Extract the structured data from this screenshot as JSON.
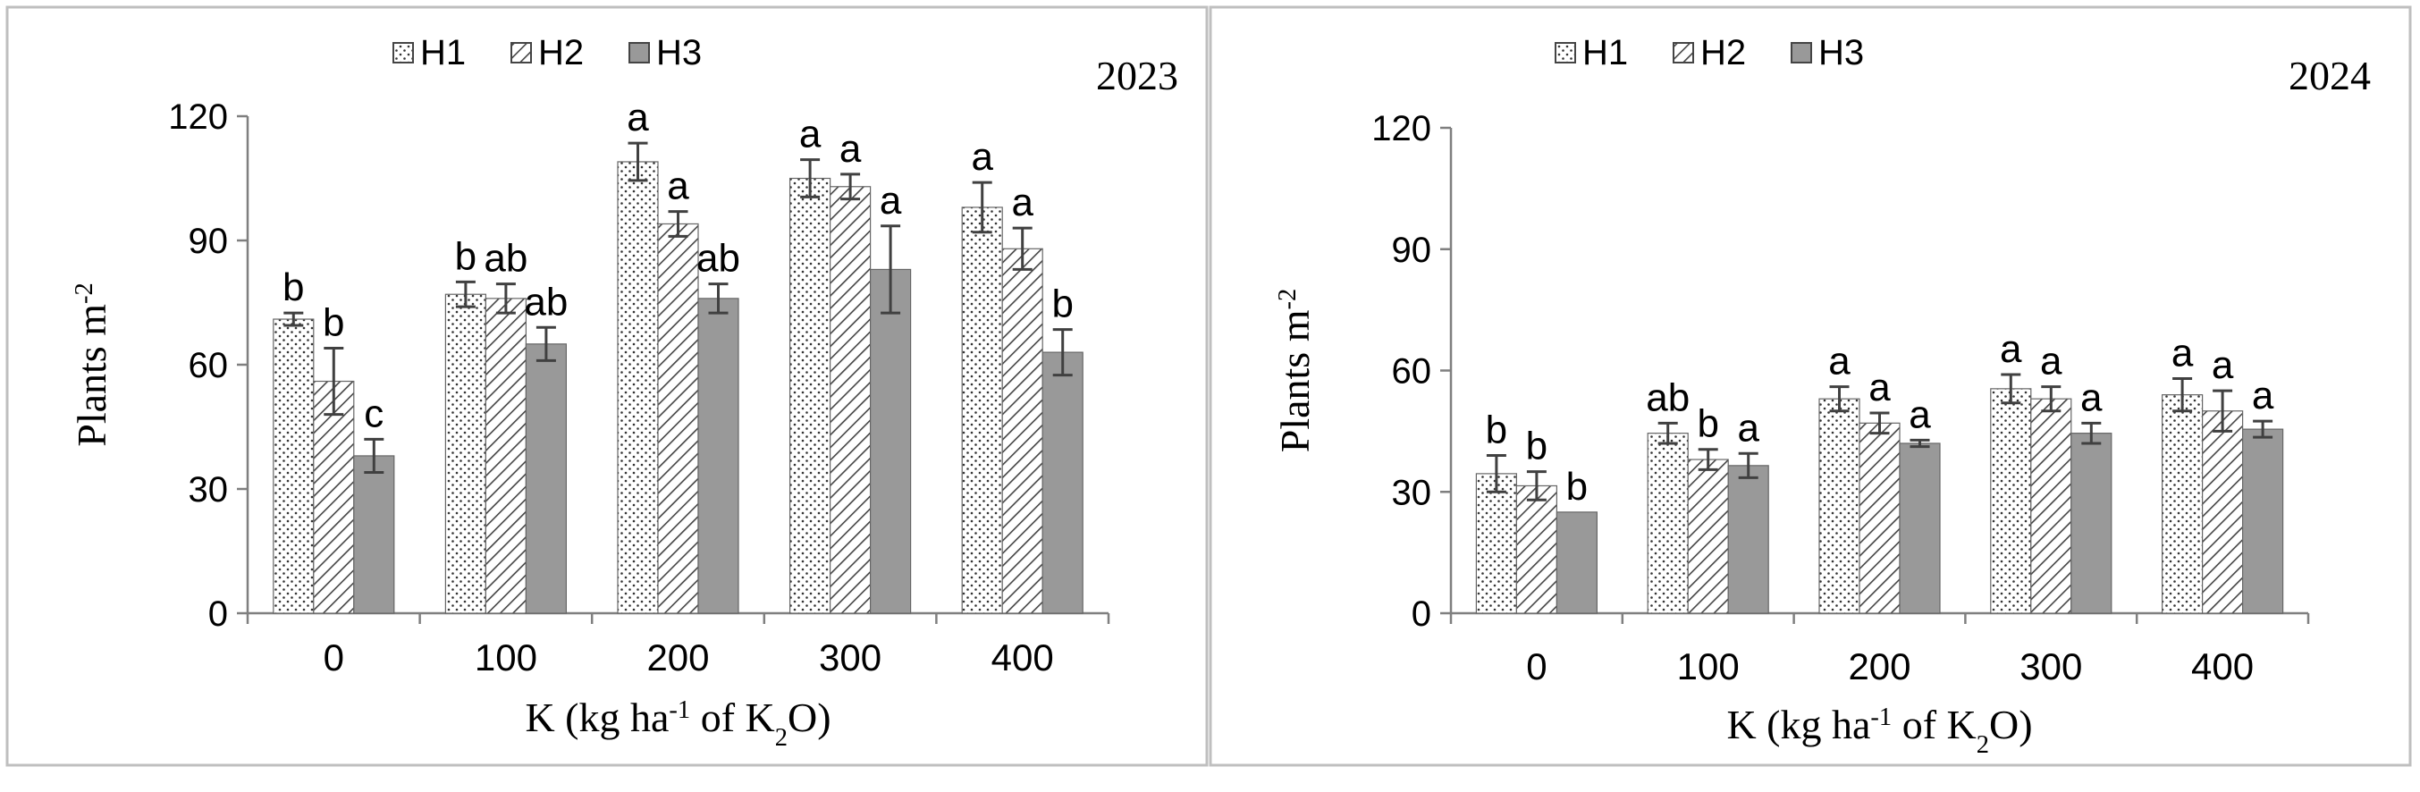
{
  "chart_data": [
    {
      "type": "bar",
      "panel_label": "2023",
      "title": "",
      "xlabel": "K (kg ha⁻¹ of K₂O)",
      "ylabel": "Plants m⁻²",
      "ylim": [
        0,
        120
      ],
      "yticks": [
        "0",
        "30",
        "60",
        "90",
        "120"
      ],
      "grid": false,
      "legend_position": "top-center",
      "categories": [
        "0",
        "100",
        "200",
        "300",
        "400"
      ],
      "series": [
        {
          "name": "H1",
          "pattern": "dotted",
          "values": [
            71,
            77,
            109,
            105,
            98
          ],
          "errors": [
            1.5,
            3,
            4.5,
            4.5,
            6
          ],
          "labels": [
            "b",
            "b",
            "a",
            "a",
            "a"
          ]
        },
        {
          "name": "H2",
          "pattern": "hatched",
          "values": [
            56,
            76,
            94,
            103,
            88
          ],
          "errors": [
            8,
            3.5,
            3,
            3,
            5
          ],
          "labels": [
            "b",
            "ab",
            "a",
            "a",
            "a"
          ]
        },
        {
          "name": "H3",
          "pattern": "solid",
          "values": [
            38,
            65,
            76,
            83,
            63
          ],
          "errors": [
            4,
            4,
            3.5,
            10.5,
            5.5
          ],
          "labels": [
            "c",
            "ab",
            "ab",
            "a",
            "b"
          ]
        }
      ]
    },
    {
      "type": "bar",
      "panel_label": "2024",
      "title": "",
      "xlabel": "K (kg ha⁻¹ of K₂O)",
      "ylabel": "Plants m⁻²",
      "ylim": [
        0,
        120
      ],
      "yticks": [
        "0",
        "30",
        "60",
        "90",
        "120"
      ],
      "grid": false,
      "legend_position": "top-center",
      "categories": [
        "0",
        "100",
        "200",
        "300",
        "400"
      ],
      "series": [
        {
          "name": "H1",
          "pattern": "dotted",
          "values": [
            34.5,
            44.5,
            53,
            55.5,
            54
          ],
          "errors": [
            4.5,
            2.5,
            3,
            3.5,
            4
          ],
          "labels": [
            "b",
            "ab",
            "a",
            "a",
            "a"
          ]
        },
        {
          "name": "H2",
          "pattern": "hatched",
          "values": [
            31.5,
            38,
            47,
            53,
            50
          ],
          "errors": [
            3.5,
            2.5,
            2.5,
            3,
            5
          ],
          "labels": [
            "b",
            "b",
            "a",
            "a",
            "a"
          ]
        },
        {
          "name": "H3",
          "pattern": "solid",
          "values": [
            25,
            36.5,
            42,
            44.5,
            45.5
          ],
          "errors": [
            0,
            3,
            0.8,
            2.5,
            2
          ],
          "labels": [
            "b",
            "a",
            "a",
            "a",
            "a"
          ]
        }
      ]
    }
  ]
}
